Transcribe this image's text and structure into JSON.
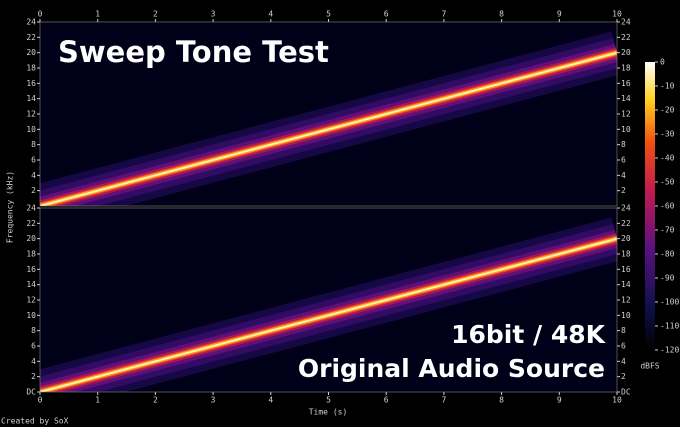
{
  "title": "Sweep Tone Test",
  "caption": [
    "16bit / 48K",
    "Original Audio Source"
  ],
  "footer": "Created by SoX",
  "xlabel": "Time (s)",
  "ylabel": "Frequency (kHz)",
  "colorbar": {
    "label": "dBFS",
    "lim": [
      -120,
      0
    ],
    "ticks": [
      0,
      -10,
      -20,
      -30,
      -40,
      -50,
      -60,
      -70,
      -80,
      -90,
      -100,
      -110,
      -120
    ]
  },
  "chart_data": [
    {
      "type": "line",
      "x": [
        0,
        10
      ],
      "series": [
        {
          "color": "#fff6b0",
          "values": [
            0,
            20
          ]
        }
      ],
      "xlim": [
        0,
        10
      ],
      "xticks": [
        0,
        1,
        2,
        3,
        4,
        5,
        6,
        7,
        8,
        9,
        10
      ],
      "xticks_position": "top",
      "ylim": [
        0,
        24
      ],
      "yticks": [
        2,
        4,
        6,
        8,
        10,
        12,
        14,
        16,
        18,
        20,
        22,
        24
      ]
    },
    {
      "type": "line",
      "x": [
        0,
        10
      ],
      "series": [
        {
          "color": "#fff6b0",
          "values": [
            0,
            20
          ]
        }
      ],
      "xlim": [
        0,
        10
      ],
      "xticks": [
        0,
        1,
        2,
        3,
        4,
        5,
        6,
        7,
        8,
        9,
        10
      ],
      "xticks_position": "bottom",
      "ylim": [
        0,
        24
      ],
      "yticks": [
        {
          "value": 0,
          "label": "DC"
        },
        2,
        4,
        6,
        8,
        10,
        12,
        14,
        16,
        18,
        20,
        22,
        24
      ]
    }
  ]
}
